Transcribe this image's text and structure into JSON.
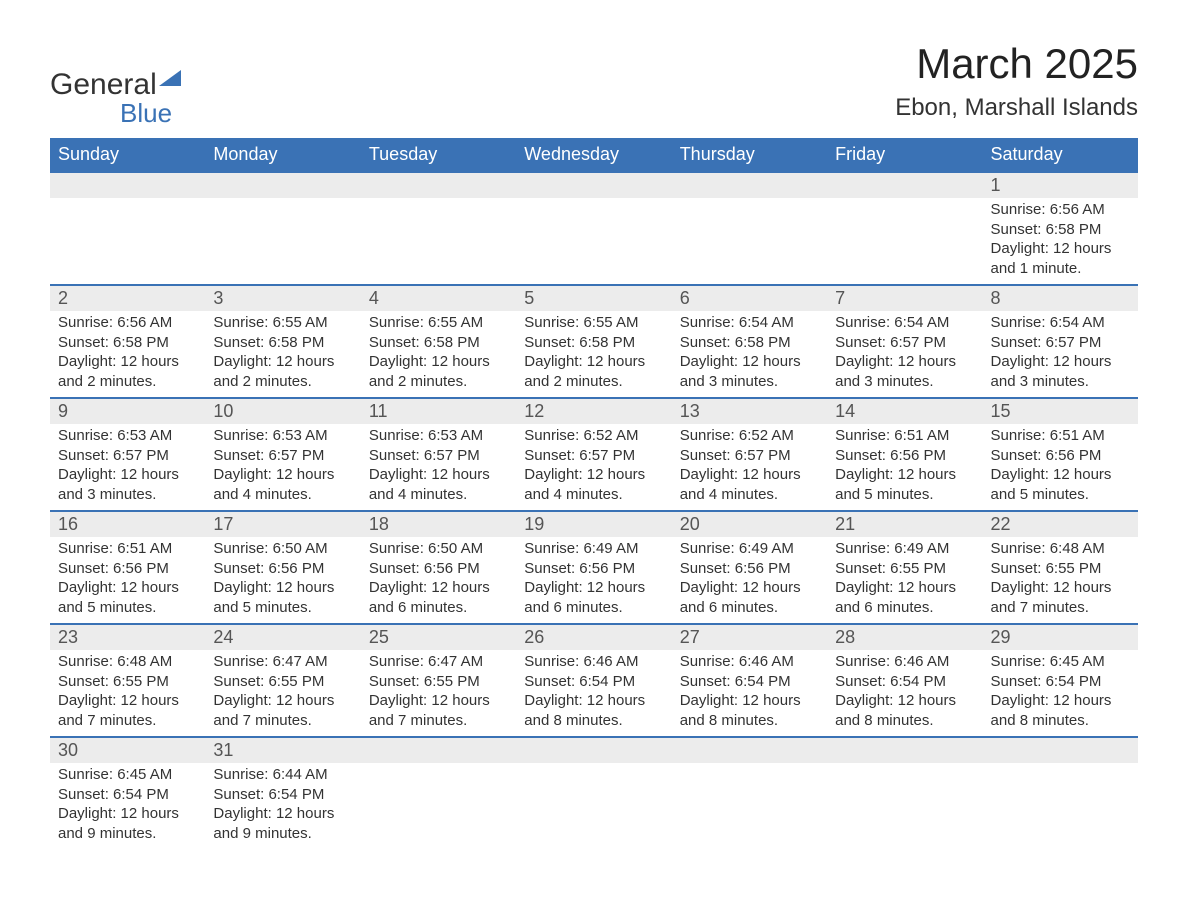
{
  "logo": {
    "line1": "General",
    "line2": "Blue",
    "accent_color": "#3a72b5"
  },
  "title": "March 2025",
  "location": "Ebon, Marshall Islands",
  "colors": {
    "header_bg": "#3a72b5",
    "header_text": "#ffffff",
    "daynum_bg": "#ececec",
    "border": "#3a72b5",
    "body_text": "#333333",
    "background": "#ffffff"
  },
  "typography": {
    "title_fontsize": 42,
    "location_fontsize": 24,
    "weekday_fontsize": 18,
    "daynum_fontsize": 18,
    "cell_fontsize": 15
  },
  "weekdays": [
    "Sunday",
    "Monday",
    "Tuesday",
    "Wednesday",
    "Thursday",
    "Friday",
    "Saturday"
  ],
  "weeks": [
    [
      null,
      null,
      null,
      null,
      null,
      null,
      {
        "d": "1",
        "sr": "Sunrise: 6:56 AM",
        "ss": "Sunset: 6:58 PM",
        "dl": "Daylight: 12 hours and 1 minute."
      }
    ],
    [
      {
        "d": "2",
        "sr": "Sunrise: 6:56 AM",
        "ss": "Sunset: 6:58 PM",
        "dl": "Daylight: 12 hours and 2 minutes."
      },
      {
        "d": "3",
        "sr": "Sunrise: 6:55 AM",
        "ss": "Sunset: 6:58 PM",
        "dl": "Daylight: 12 hours and 2 minutes."
      },
      {
        "d": "4",
        "sr": "Sunrise: 6:55 AM",
        "ss": "Sunset: 6:58 PM",
        "dl": "Daylight: 12 hours and 2 minutes."
      },
      {
        "d": "5",
        "sr": "Sunrise: 6:55 AM",
        "ss": "Sunset: 6:58 PM",
        "dl": "Daylight: 12 hours and 2 minutes."
      },
      {
        "d": "6",
        "sr": "Sunrise: 6:54 AM",
        "ss": "Sunset: 6:58 PM",
        "dl": "Daylight: 12 hours and 3 minutes."
      },
      {
        "d": "7",
        "sr": "Sunrise: 6:54 AM",
        "ss": "Sunset: 6:57 PM",
        "dl": "Daylight: 12 hours and 3 minutes."
      },
      {
        "d": "8",
        "sr": "Sunrise: 6:54 AM",
        "ss": "Sunset: 6:57 PM",
        "dl": "Daylight: 12 hours and 3 minutes."
      }
    ],
    [
      {
        "d": "9",
        "sr": "Sunrise: 6:53 AM",
        "ss": "Sunset: 6:57 PM",
        "dl": "Daylight: 12 hours and 3 minutes."
      },
      {
        "d": "10",
        "sr": "Sunrise: 6:53 AM",
        "ss": "Sunset: 6:57 PM",
        "dl": "Daylight: 12 hours and 4 minutes."
      },
      {
        "d": "11",
        "sr": "Sunrise: 6:53 AM",
        "ss": "Sunset: 6:57 PM",
        "dl": "Daylight: 12 hours and 4 minutes."
      },
      {
        "d": "12",
        "sr": "Sunrise: 6:52 AM",
        "ss": "Sunset: 6:57 PM",
        "dl": "Daylight: 12 hours and 4 minutes."
      },
      {
        "d": "13",
        "sr": "Sunrise: 6:52 AM",
        "ss": "Sunset: 6:57 PM",
        "dl": "Daylight: 12 hours and 4 minutes."
      },
      {
        "d": "14",
        "sr": "Sunrise: 6:51 AM",
        "ss": "Sunset: 6:56 PM",
        "dl": "Daylight: 12 hours and 5 minutes."
      },
      {
        "d": "15",
        "sr": "Sunrise: 6:51 AM",
        "ss": "Sunset: 6:56 PM",
        "dl": "Daylight: 12 hours and 5 minutes."
      }
    ],
    [
      {
        "d": "16",
        "sr": "Sunrise: 6:51 AM",
        "ss": "Sunset: 6:56 PM",
        "dl": "Daylight: 12 hours and 5 minutes."
      },
      {
        "d": "17",
        "sr": "Sunrise: 6:50 AM",
        "ss": "Sunset: 6:56 PM",
        "dl": "Daylight: 12 hours and 5 minutes."
      },
      {
        "d": "18",
        "sr": "Sunrise: 6:50 AM",
        "ss": "Sunset: 6:56 PM",
        "dl": "Daylight: 12 hours and 6 minutes."
      },
      {
        "d": "19",
        "sr": "Sunrise: 6:49 AM",
        "ss": "Sunset: 6:56 PM",
        "dl": "Daylight: 12 hours and 6 minutes."
      },
      {
        "d": "20",
        "sr": "Sunrise: 6:49 AM",
        "ss": "Sunset: 6:56 PM",
        "dl": "Daylight: 12 hours and 6 minutes."
      },
      {
        "d": "21",
        "sr": "Sunrise: 6:49 AM",
        "ss": "Sunset: 6:55 PM",
        "dl": "Daylight: 12 hours and 6 minutes."
      },
      {
        "d": "22",
        "sr": "Sunrise: 6:48 AM",
        "ss": "Sunset: 6:55 PM",
        "dl": "Daylight: 12 hours and 7 minutes."
      }
    ],
    [
      {
        "d": "23",
        "sr": "Sunrise: 6:48 AM",
        "ss": "Sunset: 6:55 PM",
        "dl": "Daylight: 12 hours and 7 minutes."
      },
      {
        "d": "24",
        "sr": "Sunrise: 6:47 AM",
        "ss": "Sunset: 6:55 PM",
        "dl": "Daylight: 12 hours and 7 minutes."
      },
      {
        "d": "25",
        "sr": "Sunrise: 6:47 AM",
        "ss": "Sunset: 6:55 PM",
        "dl": "Daylight: 12 hours and 7 minutes."
      },
      {
        "d": "26",
        "sr": "Sunrise: 6:46 AM",
        "ss": "Sunset: 6:54 PM",
        "dl": "Daylight: 12 hours and 8 minutes."
      },
      {
        "d": "27",
        "sr": "Sunrise: 6:46 AM",
        "ss": "Sunset: 6:54 PM",
        "dl": "Daylight: 12 hours and 8 minutes."
      },
      {
        "d": "28",
        "sr": "Sunrise: 6:46 AM",
        "ss": "Sunset: 6:54 PM",
        "dl": "Daylight: 12 hours and 8 minutes."
      },
      {
        "d": "29",
        "sr": "Sunrise: 6:45 AM",
        "ss": "Sunset: 6:54 PM",
        "dl": "Daylight: 12 hours and 8 minutes."
      }
    ],
    [
      {
        "d": "30",
        "sr": "Sunrise: 6:45 AM",
        "ss": "Sunset: 6:54 PM",
        "dl": "Daylight: 12 hours and 9 minutes."
      },
      {
        "d": "31",
        "sr": "Sunrise: 6:44 AM",
        "ss": "Sunset: 6:54 PM",
        "dl": "Daylight: 12 hours and 9 minutes."
      },
      null,
      null,
      null,
      null,
      null
    ]
  ]
}
